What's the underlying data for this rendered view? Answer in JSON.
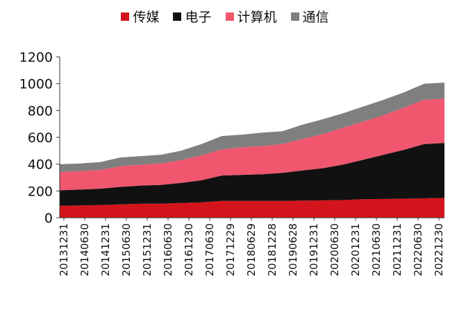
{
  "chart_data": {
    "type": "area",
    "stacked": true,
    "title": "",
    "xlabel": "",
    "ylabel": "",
    "ylim": [
      0,
      1200
    ],
    "yticks": [
      0,
      200,
      400,
      600,
      800,
      1000,
      1200
    ],
    "x_tick_labels": [
      "20131231",
      "20140630",
      "20141231",
      "20150630",
      "20151231",
      "20160630",
      "20161230",
      "20170630",
      "20171229",
      "20180629",
      "20181228",
      "20190628",
      "20191231",
      "20200630",
      "20201231",
      "20210630",
      "20211231",
      "20220630",
      "20221230"
    ],
    "grid": false,
    "legend_position": "top",
    "x": [
      "20131231",
      "20140630",
      "20141231",
      "20150630",
      "20151231",
      "20160630",
      "20161230",
      "20170630",
      "20171229",
      "20180629",
      "20181228",
      "20190628",
      "20191231",
      "20200630",
      "20201231",
      "20210630",
      "20211231",
      "20220630",
      "20221230",
      "20230331"
    ],
    "series": [
      {
        "name": "传媒",
        "color": "#D4141C",
        "values": [
          90,
          92,
          95,
          100,
          105,
          105,
          110,
          115,
          125,
          125,
          125,
          125,
          128,
          130,
          132,
          138,
          140,
          142,
          145,
          148
        ]
      },
      {
        "name": "电子",
        "color": "#111111",
        "values": [
          115,
          118,
          122,
          130,
          135,
          140,
          150,
          165,
          190,
          195,
          200,
          210,
          225,
          240,
          265,
          295,
          330,
          365,
          405,
          410
        ]
      },
      {
        "name": "计算机",
        "color": "#F0566E",
        "values": [
          135,
          138,
          140,
          155,
          155,
          160,
          170,
          185,
          195,
          205,
          210,
          215,
          235,
          255,
          275,
          285,
          295,
          315,
          330,
          330
        ]
      },
      {
        "name": "通信",
        "color": "#7F7F7F",
        "values": [
          60,
          57,
          58,
          65,
          65,
          65,
          70,
          85,
          100,
          95,
          100,
          95,
          107,
          110,
          108,
          112,
          115,
          113,
          120,
          120
        ]
      }
    ]
  }
}
